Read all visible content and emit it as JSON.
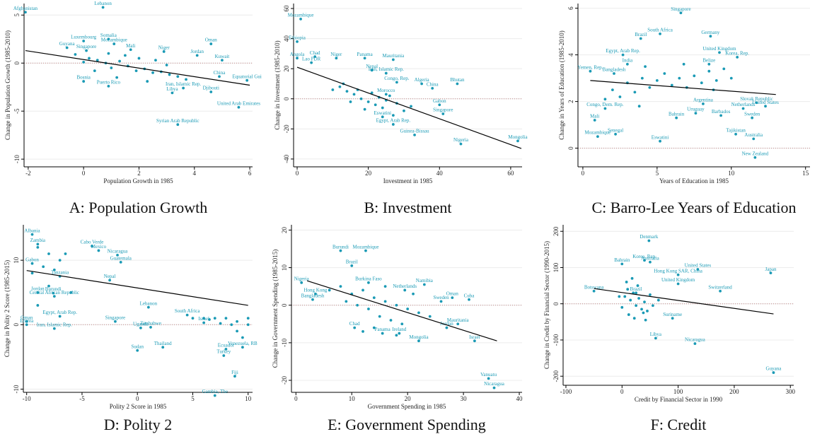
{
  "chart_data": [
    {
      "type": "scatter",
      "caption": "A: Population Growth",
      "xlabel": "Population Growth in 1985",
      "ylabel": "Change in Population Growth (1985-2010)",
      "xlim": [
        -2.15,
        6.1
      ],
      "ylim": [
        -10.8,
        6.2
      ],
      "xticks": [
        -2,
        0,
        2,
        4,
        6
      ],
      "yticks": [
        -10,
        -5,
        0,
        5
      ],
      "grid": true,
      "color": "#1a9ab5",
      "ref_line": 0,
      "labels": [
        "Afghanistan",
        "Lebanon",
        "Luxembourg",
        "Somalia",
        "Mozambique",
        "Guyana",
        "Singapore",
        "Mali",
        "Niger",
        "Oman",
        "Jordan",
        "Kuwait",
        "Iran, Islamic Rep.",
        "Libya",
        "Djibouti",
        "China",
        "Equatorial Gui",
        "United Arab Emirates",
        "Syrian Arab Republic",
        "Bosnia",
        "Puerto Rico",
        null,
        null,
        null,
        null,
        null,
        null,
        null,
        null,
        null,
        null,
        null,
        null,
        null,
        null,
        null,
        null,
        null,
        null,
        null,
        null,
        null,
        null,
        null
      ],
      "x": [
        -2.1,
        0.7,
        0.0,
        0.9,
        1.1,
        -0.6,
        0.1,
        1.7,
        2.9,
        4.6,
        4.1,
        5.0,
        3.6,
        3.2,
        4.6,
        4.9,
        5.9,
        5.6,
        3.4,
        0.0,
        0.9,
        0.2,
        0.5,
        0.8,
        1.0,
        1.3,
        1.6,
        1.9,
        2.2,
        2.5,
        2.8,
        3.1,
        3.4,
        0.4,
        0.9,
        1.5,
        2.0,
        2.6,
        3.0,
        -0.3,
        0.0,
        3.7,
        2.3,
        1.2
      ],
      "values": [
        5.3,
        5.8,
        2.3,
        2.5,
        2.0,
        1.6,
        1.3,
        1.4,
        1.2,
        2.0,
        0.8,
        0.3,
        -2.6,
        -3.1,
        -3.0,
        -1.4,
        -1.8,
        -4.6,
        -6.4,
        -1.9,
        -2.4,
        0.5,
        0.3,
        0.0,
        -0.5,
        0.2,
        -0.3,
        -0.8,
        -0.6,
        -1.0,
        -0.9,
        -1.2,
        -1.4,
        -0.8,
        1.0,
        0.8,
        0.5,
        0.3,
        -0.2,
        0.9,
        0.1,
        -1.7,
        -1.9,
        -1.5
      ],
      "fit": {
        "x": [
          -2.1,
          6.0
        ],
        "values": [
          1.3,
          -2.3
        ],
        "color": "#000000"
      }
    },
    {
      "type": "scatter",
      "caption": "B: Investment",
      "xlabel": "Investment in 1985",
      "ylabel": "Change in Investment (1985-2010)",
      "xlim": [
        -1,
        63.2
      ],
      "ylim": [
        -45.2,
        63.3
      ],
      "xticks": [
        0,
        20,
        40,
        60
      ],
      "yticks": [
        -40,
        -20,
        0,
        20,
        40,
        60
      ],
      "grid": true,
      "color": "#1a9ab5",
      "ref_line": 0,
      "labels": [
        "Mozambique",
        "Ethiopia",
        "Angola",
        "Chad",
        "Lao PDR",
        "Niger",
        "Panama",
        "Mauritania",
        "Nepal",
        "Iran, Islamic Rep.",
        "Algeria",
        "Congo, Rep.",
        "China",
        "Bhutan",
        "Gabon",
        "Singapore",
        "Eswatini",
        "Egypt, Arab Rep.",
        "Guinea-Bissau",
        "Nigeria",
        "Mongolia",
        "Morocco",
        null,
        null,
        null,
        null,
        null,
        null,
        null,
        null,
        null,
        null,
        null,
        null,
        null,
        null,
        null,
        null,
        null,
        null,
        null,
        null
      ],
      "x": [
        1,
        0,
        0,
        5,
        4,
        11,
        19,
        27,
        21,
        25,
        35,
        28,
        38,
        45,
        40,
        41,
        24,
        27,
        33,
        46,
        62,
        25,
        12,
        14,
        16,
        18,
        20,
        22,
        24,
        26,
        17,
        21,
        25,
        28,
        30,
        19,
        15,
        23,
        27,
        32,
        13,
        10
      ],
      "values": [
        53,
        38,
        27,
        28,
        24,
        27,
        27,
        26,
        19,
        17,
        10,
        11,
        7,
        10,
        -4,
        -10,
        -12,
        -17,
        -24,
        -30,
        -28,
        3,
        8,
        5,
        3,
        0,
        -2,
        -4,
        -6,
        2,
        6,
        4,
        -1,
        -3,
        -8,
        -7,
        -2,
        1,
        -11,
        -5,
        10,
        6
      ],
      "fit": {
        "x": [
          0,
          63
        ],
        "values": [
          21,
          -33
        ],
        "color": "#000000"
      }
    },
    {
      "type": "scatter",
      "caption": "C: Barro-Lee Years of Education",
      "xlabel": "Years of Education in 1985",
      "ylabel": "Change in Years of Education (1985-2010)",
      "xlim": [
        -0.33,
        15.3
      ],
      "ylim": [
        -0.8,
        6.2
      ],
      "xticks": [
        0,
        5,
        10,
        15
      ],
      "yticks": [
        0,
        2,
        4,
        6
      ],
      "grid": true,
      "color": "#1a9ab5",
      "ref_line": 0,
      "labels": [
        "Singapore",
        "South Africa",
        "Germany",
        "Brazil",
        "United Kingdom",
        "Korea, Rep.",
        "Egypt, Arab Rep.",
        "India",
        "Belize",
        "Yemen, Rep.",
        "Bangladesh",
        "Mali",
        "Mozambique",
        "Senegal",
        "Eswatini",
        "Uruguay",
        "Barbados",
        "Argentina",
        "Netherlands",
        "Slovak Republic",
        "United States",
        "Australia",
        "New Zealand",
        "Tajikistan",
        "Sweden",
        "Bahrain",
        "Congo, Dem. Rep.",
        null,
        null,
        null,
        null,
        null,
        null,
        null,
        null,
        null,
        null,
        null,
        null,
        null,
        null,
        null,
        null,
        null,
        null,
        null,
        null,
        null,
        null
      ],
      "x": [
        6.6,
        5.2,
        8.6,
        3.9,
        9.2,
        10.4,
        2.7,
        3.0,
        8.5,
        0.5,
        2.1,
        0.8,
        1.0,
        2.2,
        5.2,
        7.6,
        9.3,
        8.1,
        10.8,
        11.7,
        12.3,
        11.5,
        11.6,
        10.3,
        11.4,
        6.3,
        1.5,
        2,
        2.5,
        3,
        3.5,
        4,
        4.5,
        5,
        5.5,
        6,
        6.5,
        7,
        7.5,
        8,
        8.5,
        9,
        9.5,
        10,
        1.5,
        4.2,
        6.8,
        8.8,
        3.8
      ],
      "values": [
        5.8,
        4.9,
        4.8,
        4.7,
        4.1,
        3.9,
        4.0,
        3.6,
        3.6,
        3.3,
        3.2,
        1.2,
        0.5,
        0.6,
        0.3,
        1.5,
        1.4,
        1.9,
        1.7,
        1.95,
        1.8,
        0.4,
        -0.4,
        0.6,
        1.3,
        1.3,
        1.7,
        2.5,
        2.2,
        2.8,
        2.4,
        3.0,
        2.6,
        2.9,
        3.2,
        2.7,
        3.0,
        2.6,
        3.1,
        2.8,
        3.3,
        2.9,
        3.4,
        3.0,
        2.1,
        3.5,
        3.6,
        2.5,
        1.8
      ],
      "fit": {
        "x": [
          0.5,
          13
        ],
        "values": [
          2.9,
          2.3
        ],
        "color": "#000000"
      }
    },
    {
      "type": "scatter",
      "caption": "D: Polity 2",
      "xlabel": "Polity 2 Score in 1985",
      "ylabel": "Change in Polity 2 Score (1985-2015)",
      "xlim": [
        -10.3,
        10.4
      ],
      "ylim": [
        -10.5,
        15.5
      ],
      "xticks": [
        -10,
        -5,
        0,
        5,
        10
      ],
      "yticks": [
        -10,
        0,
        10
      ],
      "grid": true,
      "color": "#1a9ab5",
      "ref_line": 0,
      "labels": [
        "Albania",
        "Zambia",
        "Cabo Verde",
        "Mexico",
        "Nicaragua",
        "Guatemala",
        "Nepal",
        "Tanzania",
        "Gabon",
        "Jordan",
        "Lebanon",
        "Zimbabwe",
        "South Africa",
        "Singapore",
        "Uganda",
        "Sudan",
        "Thailand",
        "Gambia, The",
        "Fiji",
        "Turkey",
        "Ecuador",
        "Venezuela, RB",
        "Oman",
        "Eritrea",
        "Iran, Islamic Rep.",
        "Egypt, Arab Rep.",
        "Central African Republic",
        "Burundi",
        "Israel",
        null,
        null,
        null,
        null,
        null,
        null,
        null,
        null,
        null,
        null,
        null,
        null,
        null,
        null,
        null,
        null,
        null,
        null,
        null,
        null,
        null,
        null
      ],
      "x": [
        -9.5,
        -9,
        -4.1,
        -3.5,
        -1.8,
        -1.5,
        -2.5,
        -7,
        -9.5,
        -9,
        1,
        1.2,
        4.5,
        -2,
        0.3,
        0,
        2.3,
        7,
        8.8,
        7.8,
        8,
        9.5,
        -10,
        -10,
        -7.5,
        -7,
        -7.5,
        -7.6,
        6,
        -9,
        -8,
        -7,
        -8.5,
        -9.5,
        -7.5,
        -6.5,
        -8,
        -9,
        -6,
        5,
        6,
        7,
        8,
        9,
        10,
        7.5,
        9,
        9.5,
        6.5,
        8.5,
        10
      ],
      "values": [
        14,
        12.5,
        12.2,
        11.5,
        10.8,
        9.7,
        6.9,
        7.5,
        9.5,
        5,
        2.7,
        -0.4,
        1.5,
        0.5,
        -0.5,
        -4,
        -3.5,
        -11,
        -8,
        -4.8,
        -3.8,
        -3.5,
        0.5,
        0,
        -0.6,
        1.3,
        4.4,
        4.9,
        0.3,
        12,
        11,
        10,
        9,
        8,
        8.5,
        11,
        6,
        3,
        5,
        1,
        1,
        1,
        1,
        0.5,
        0,
        0.2,
        -1,
        -2,
        0.8,
        0,
        1
      ],
      "fit": {
        "x": [
          -10,
          10
        ],
        "values": [
          8.4,
          3.0
        ],
        "color": "#000000"
      }
    },
    {
      "type": "scatter",
      "caption": "E: Government Spending",
      "xlabel": "Government Spending in 1985",
      "ylabel": "Change in Government Spending (1985-2015)",
      "xlim": [
        -0.8,
        40.5
      ],
      "ylim": [
        -23.2,
        21.4
      ],
      "xticks": [
        0,
        10,
        20,
        30,
        40
      ],
      "yticks": [
        -20,
        -10,
        0,
        10,
        20
      ],
      "grid": true,
      "color": "#1a9ab5",
      "ref_line": 0,
      "labels": [
        "Burundi",
        "Mozambique",
        "Brazil",
        "Nigeria",
        "Hong Kong",
        "Bangladesh",
        "Chad",
        "Burkina Faso",
        "Netherlands",
        "Namibia",
        "Cuba",
        "Sweden",
        "Oman",
        "Mauritania",
        "Jordan",
        "Israel",
        "Mongolia",
        "Ireland",
        "Panama",
        "Vanuatu",
        "Nicaragua",
        null,
        null,
        null,
        null,
        null,
        null,
        null,
        null,
        null,
        null,
        null,
        null,
        null,
        null,
        null,
        null,
        null,
        null,
        null,
        null,
        null
      ],
      "x": [
        8,
        12.5,
        10,
        1,
        3.5,
        3,
        10.5,
        13,
        19.5,
        23,
        31,
        26,
        28,
        29,
        27,
        32,
        22,
        18.5,
        15.5,
        34.5,
        35.5,
        8,
        10,
        12,
        14,
        16,
        18,
        20,
        22,
        11,
        13,
        15,
        17,
        19,
        21,
        9,
        6,
        24,
        16,
        14,
        12,
        18
      ],
      "values": [
        14.5,
        14.5,
        10.5,
        6,
        3,
        1.5,
        -6,
        6,
        4,
        5.5,
        1.5,
        1,
        2,
        -5,
        -6,
        -9.5,
        -9.5,
        -7.5,
        -7.5,
        -19.5,
        -22,
        5,
        3,
        4,
        2,
        1,
        0,
        -1,
        -2,
        0,
        -1,
        -3,
        -4,
        -5,
        3,
        1,
        4,
        -3,
        5,
        -6,
        -7,
        -8
      ],
      "fit": {
        "x": [
          2,
          36
        ],
        "values": [
          6.5,
          -9.5
        ],
        "color": "#000000"
      }
    },
    {
      "type": "scatter",
      "caption": "F: Credit",
      "xlabel": "Credit by Financial Sector in 1990",
      "ylabel": "Change in Credit by Financial Sector (1990-2015)",
      "xlim": [
        -105,
        306
      ],
      "ylim": [
        -225,
        218
      ],
      "xticks": [
        -100,
        0,
        100,
        200,
        300
      ],
      "yticks": [
        -200,
        -100,
        0,
        100,
        200
      ],
      "grid": true,
      "color": "#1a9ab5",
      "ref_line": 0,
      "labels": [
        "Denmark",
        "Korea, Rep.",
        "Australia",
        "Bahrain",
        "United States",
        "Japan",
        "Hong Kong SAR, China",
        "United Kingdom",
        "Botswana",
        "Switzerland",
        "Brazil",
        "Suriname",
        "Libya",
        "Nicaragua",
        "Guyana",
        null,
        null,
        null,
        null,
        null,
        null,
        null,
        null,
        null,
        null,
        null,
        null,
        null,
        null,
        null,
        null,
        null,
        null,
        null,
        null,
        null
      ],
      "x": [
        48,
        40,
        50,
        0,
        135,
        265,
        100,
        100,
        -50,
        175,
        25,
        90,
        60,
        130,
        270,
        5,
        10,
        15,
        20,
        25,
        30,
        35,
        40,
        45,
        50,
        0,
        -5,
        12,
        22,
        38,
        55,
        65,
        8,
        28,
        18,
        42
      ],
      "values": [
        174,
        120,
        115,
        110,
        95,
        85,
        80,
        55,
        35,
        35,
        30,
        -40,
        -95,
        -110,
        -190,
        20,
        40,
        10,
        30,
        -5,
        15,
        -15,
        5,
        -20,
        25,
        -10,
        20,
        -30,
        -40,
        -25,
        -5,
        10,
        60,
        50,
        70,
        -45
      ],
      "fit": {
        "x": [
          -50,
          270
        ],
        "values": [
          42,
          -28
        ],
        "color": "#000000"
      }
    }
  ]
}
